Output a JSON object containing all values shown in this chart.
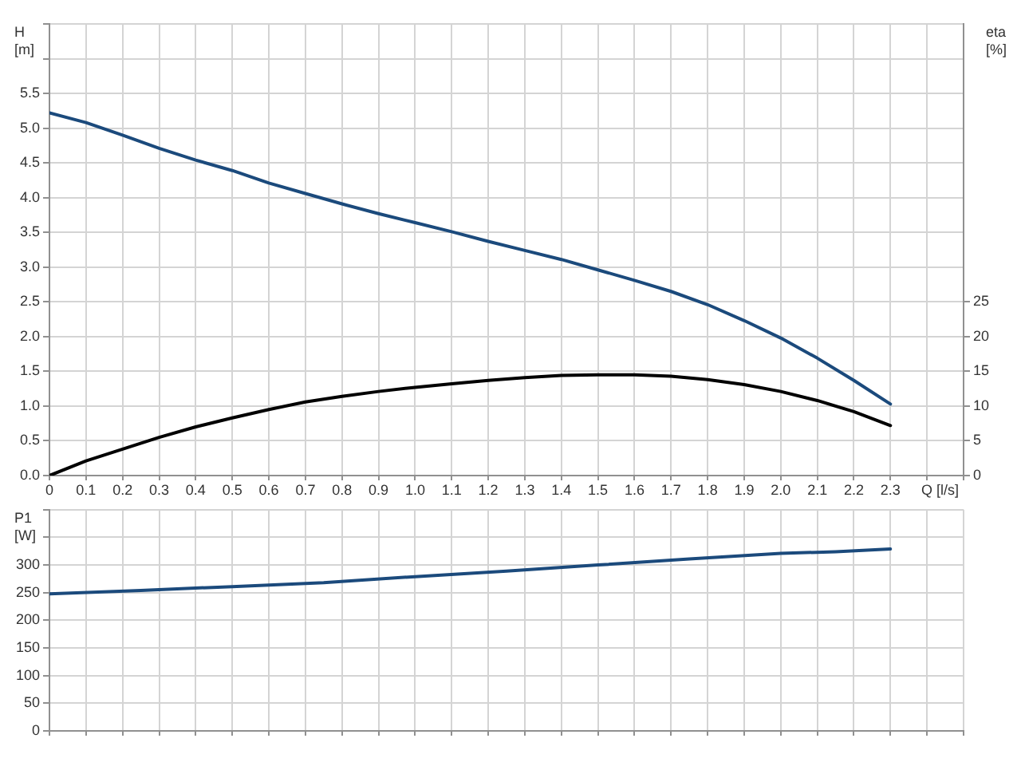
{
  "chart_data": [
    {
      "type": "line",
      "xlabel": "Q [l/s]",
      "ylabel": "H [m]",
      "y2label": "eta [%]",
      "grid": true,
      "legend": false,
      "marker": "none",
      "line_style": "solid",
      "xlim": [
        0,
        2.5
      ],
      "xticks": [
        {
          "value": 0,
          "label": "0"
        },
        0.1,
        0.2,
        0.3,
        0.4,
        0.5,
        0.6,
        0.7,
        0.8,
        0.9,
        {
          "value": 1,
          "label": "1.0"
        },
        1.1,
        1.2,
        1.3,
        1.4,
        1.5,
        1.6,
        1.7,
        1.8,
        1.9,
        {
          "value": 2,
          "label": "2.0"
        },
        2.1,
        2.2,
        2.3,
        {
          "value": 2.4,
          "label": null
        },
        {
          "value": 2.5,
          "label": null
        }
      ],
      "ylim": [
        0,
        6.5
      ],
      "yticks": [
        {
          "value": 0,
          "label": "0.0"
        },
        0.5,
        {
          "value": 1,
          "label": "1.0"
        },
        1.5,
        {
          "value": 2,
          "label": "2.0"
        },
        2.5,
        {
          "value": 3,
          "label": "3.0"
        },
        3.5,
        {
          "value": 4,
          "label": "4.0"
        },
        4.5,
        {
          "value": 5,
          "label": "5.0"
        },
        5.5,
        {
          "value": 6,
          "label": null
        },
        {
          "value": 6.5,
          "label": null
        }
      ],
      "y2lim": [
        0,
        65
      ],
      "y2ticks": [
        0,
        5,
        10,
        15,
        20,
        25
      ],
      "x": [
        0,
        0.1,
        0.2,
        0.3,
        0.4,
        0.5,
        0.6,
        0.7,
        0.8,
        0.9,
        1.0,
        1.1,
        1.2,
        1.3,
        1.4,
        1.5,
        1.6,
        1.7,
        1.8,
        1.9,
        2.0,
        2.1,
        2.2,
        2.3
      ],
      "series": [
        {
          "color": "#1b4a7c",
          "values": [
            5.22,
            5.08,
            4.9,
            4.71,
            4.54,
            4.39,
            4.21,
            4.06,
            3.91,
            3.77,
            3.64,
            3.51,
            3.37,
            3.24,
            3.11,
            2.96,
            2.81,
            2.65,
            2.46,
            2.23,
            1.98,
            1.69,
            1.37,
            1.03
          ]
        },
        {
          "color": "#000000",
          "axis": "y2",
          "values": [
            0,
            2.1,
            3.8,
            5.5,
            7.0,
            8.3,
            9.5,
            10.6,
            11.4,
            12.1,
            12.7,
            13.2,
            13.7,
            14.1,
            14.4,
            14.5,
            14.5,
            14.3,
            13.8,
            13.1,
            12.1,
            10.8,
            9.2,
            7.2
          ]
        }
      ]
    },
    {
      "type": "line",
      "ylabel": "P1 [W]",
      "grid": true,
      "legend": false,
      "marker": "none",
      "line_style": "solid",
      "tick_labels": "y",
      "xlim": [
        0,
        2.5
      ],
      "xticks": [
        0,
        0.1,
        0.2,
        0.3,
        0.4,
        0.5,
        0.6,
        0.7,
        0.8,
        0.9,
        1.0,
        1.1,
        1.2,
        1.3,
        1.4,
        1.5,
        1.6,
        1.7,
        1.8,
        1.9,
        2.0,
        2.1,
        2.2,
        2.3,
        {
          "value": 2.4,
          "label": null
        },
        {
          "value": 2.5,
          "label": null
        }
      ],
      "ylim": [
        0,
        400
      ],
      "yticks": [
        0,
        50,
        100,
        150,
        200,
        250,
        300,
        {
          "value": 350,
          "label": null
        },
        {
          "value": 400,
          "label": null
        }
      ],
      "x": [
        0,
        0.25,
        0.5,
        0.75,
        1.0,
        1.25,
        1.5,
        1.75,
        2.0,
        2.15,
        2.3
      ],
      "series": [
        {
          "color": "#1b4a7c",
          "values": [
            248,
            254,
            261,
            268,
            279,
            289,
            300,
            311,
            321,
            324,
            329
          ]
        }
      ]
    }
  ]
}
